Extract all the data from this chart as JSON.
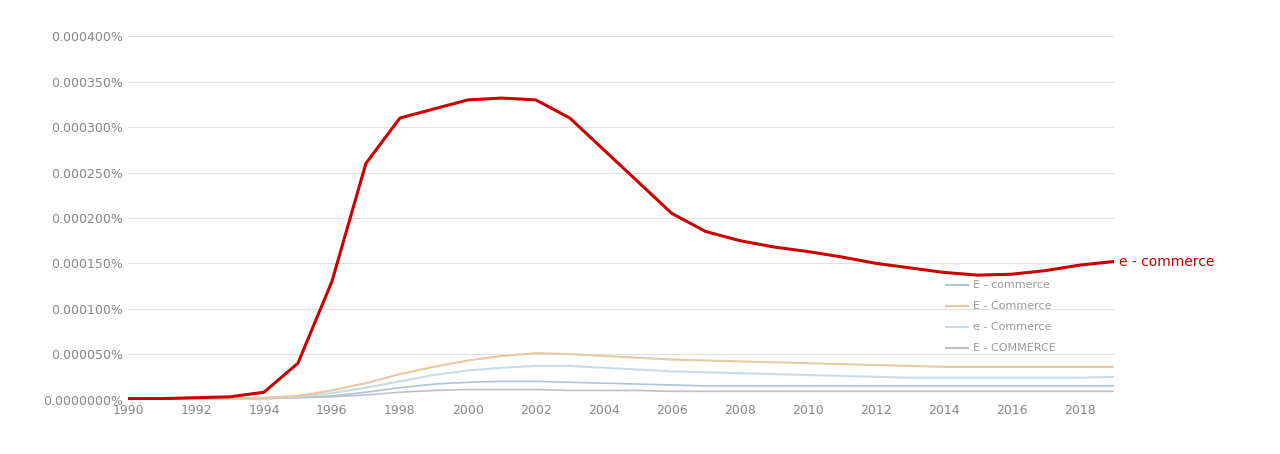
{
  "background_color": "#ffffff",
  "grid_color": "#e0e0e0",
  "xlim": [
    1990,
    2019
  ],
  "ylim": [
    0,
    4.2e-07
  ],
  "yticks": [
    0,
    5e-08,
    1e-07,
    1.5e-07,
    2e-07,
    2.5e-07,
    3e-07,
    3.5e-07,
    4e-07
  ],
  "ytick_labels": [
    "0.0000000%",
    "0.000050%",
    "0.000100%",
    "0.000150%",
    "0.000200%",
    "0.000250%",
    "0.000300%",
    "0.000350%",
    "0.000400%"
  ],
  "xticks": [
    1990,
    1992,
    1994,
    1996,
    1998,
    2000,
    2002,
    2004,
    2006,
    2008,
    2010,
    2012,
    2014,
    2016,
    2018
  ],
  "series": [
    {
      "label": "e - commerce",
      "color": "#cc0000",
      "linewidth": 2.2,
      "zorder": 5,
      "data_x": [
        1990,
        1991,
        1992,
        1993,
        1994,
        1995,
        1996,
        1997,
        1998,
        1999,
        2000,
        2001,
        2002,
        2003,
        2004,
        2005,
        2006,
        2007,
        2008,
        2009,
        2010,
        2011,
        2012,
        2013,
        2014,
        2015,
        2016,
        2017,
        2018,
        2019
      ],
      "data_y": [
        1e-09,
        1e-09,
        2e-09,
        3e-09,
        8e-09,
        4e-08,
        1.3e-07,
        2.6e-07,
        3.1e-07,
        3.2e-07,
        3.3e-07,
        3.32e-07,
        3.3e-07,
        3.1e-07,
        2.75e-07,
        2.4e-07,
        2.05e-07,
        1.85e-07,
        1.75e-07,
        1.68e-07,
        1.63e-07,
        1.57e-07,
        1.5e-07,
        1.45e-07,
        1.4e-07,
        1.37e-07,
        1.38e-07,
        1.42e-07,
        1.48e-07,
        1.52e-07
      ]
    },
    {
      "label": "E - Commerce",
      "color": "#e8c9a0",
      "linewidth": 1.5,
      "zorder": 4,
      "data_x": [
        1990,
        1991,
        1992,
        1993,
        1994,
        1995,
        1996,
        1997,
        1998,
        1999,
        2000,
        2001,
        2002,
        2003,
        2004,
        2005,
        2006,
        2007,
        2008,
        2009,
        2010,
        2011,
        2012,
        2013,
        2014,
        2015,
        2016,
        2017,
        2018,
        2019
      ],
      "data_y": [
        1e-09,
        1e-09,
        1e-09,
        1e-09,
        2e-09,
        4e-09,
        1e-08,
        1.8e-08,
        2.8e-08,
        3.6e-08,
        4.3e-08,
        4.8e-08,
        5.1e-08,
        5e-08,
        4.8e-08,
        4.6e-08,
        4.4e-08,
        4.3e-08,
        4.2e-08,
        4.1e-08,
        4e-08,
        3.9e-08,
        3.8e-08,
        3.7e-08,
        3.6e-08,
        3.6e-08,
        3.6e-08,
        3.6e-08,
        3.6e-08,
        3.6e-08
      ]
    },
    {
      "label": "e - Commerce",
      "color": "#c8dce8",
      "linewidth": 1.5,
      "zorder": 3,
      "data_x": [
        1990,
        1991,
        1992,
        1993,
        1994,
        1995,
        1996,
        1997,
        1998,
        1999,
        2000,
        2001,
        2002,
        2003,
        2004,
        2005,
        2006,
        2007,
        2008,
        2009,
        2010,
        2011,
        2012,
        2013,
        2014,
        2015,
        2016,
        2017,
        2018,
        2019
      ],
      "data_y": [
        1e-09,
        1e-09,
        1e-09,
        1e-09,
        2e-09,
        3e-09,
        7e-09,
        1.3e-08,
        2e-08,
        2.7e-08,
        3.2e-08,
        3.5e-08,
        3.7e-08,
        3.7e-08,
        3.5e-08,
        3.3e-08,
        3.1e-08,
        3e-08,
        2.9e-08,
        2.8e-08,
        2.7e-08,
        2.6e-08,
        2.5e-08,
        2.4e-08,
        2.4e-08,
        2.4e-08,
        2.4e-08,
        2.4e-08,
        2.4e-08,
        2.5e-08
      ]
    },
    {
      "label": "E - COMMERCE",
      "color": "#c0c0c8",
      "linewidth": 1.2,
      "zorder": 2,
      "data_x": [
        1990,
        1991,
        1992,
        1993,
        1994,
        1995,
        1996,
        1997,
        1998,
        1999,
        2000,
        2001,
        2002,
        2003,
        2004,
        2005,
        2006,
        2007,
        2008,
        2009,
        2010,
        2011,
        2012,
        2013,
        2014,
        2015,
        2016,
        2017,
        2018,
        2019
      ],
      "data_y": [
        1e-09,
        1e-09,
        1e-09,
        1e-09,
        1e-09,
        2e-09,
        3e-09,
        5e-09,
        8e-09,
        1e-08,
        1.1e-08,
        1.1e-08,
        1.1e-08,
        1e-08,
        1e-08,
        1e-08,
        9e-09,
        9e-09,
        9e-09,
        9e-09,
        9e-09,
        9e-09,
        9e-09,
        9e-09,
        9e-09,
        9e-09,
        9e-09,
        9e-09,
        9e-09,
        9e-09
      ]
    },
    {
      "label": "E - commerce",
      "color": "#b0c4d8",
      "linewidth": 1.2,
      "zorder": 1,
      "data_x": [
        1990,
        1991,
        1992,
        1993,
        1994,
        1995,
        1996,
        1997,
        1998,
        1999,
        2000,
        2001,
        2002,
        2003,
        2004,
        2005,
        2006,
        2007,
        2008,
        2009,
        2010,
        2011,
        2012,
        2013,
        2014,
        2015,
        2016,
        2017,
        2018,
        2019
      ],
      "data_y": [
        1e-09,
        1e-09,
        1e-09,
        1e-09,
        1e-09,
        2e-09,
        4e-09,
        8e-09,
        1.3e-08,
        1.7e-08,
        1.9e-08,
        2e-08,
        2e-08,
        1.9e-08,
        1.8e-08,
        1.7e-08,
        1.6e-08,
        1.5e-08,
        1.5e-08,
        1.5e-08,
        1.5e-08,
        1.5e-08,
        1.5e-08,
        1.5e-08,
        1.5e-08,
        1.5e-08,
        1.5e-08,
        1.5e-08,
        1.5e-08,
        1.5e-08
      ]
    }
  ],
  "annotation": {
    "text": "e - commerce",
    "color": "#cc0000",
    "fontsize": 10
  },
  "legend_entries": [
    {
      "label": "E - commerce",
      "color": "#b0c4d8"
    },
    {
      "label": "E - Commerce",
      "color": "#e8c9a0"
    },
    {
      "label": "e - Commerce",
      "color": "#c8dce8"
    },
    {
      "label": "E - COMMERCE",
      "color": "#c0c0c8"
    }
  ]
}
